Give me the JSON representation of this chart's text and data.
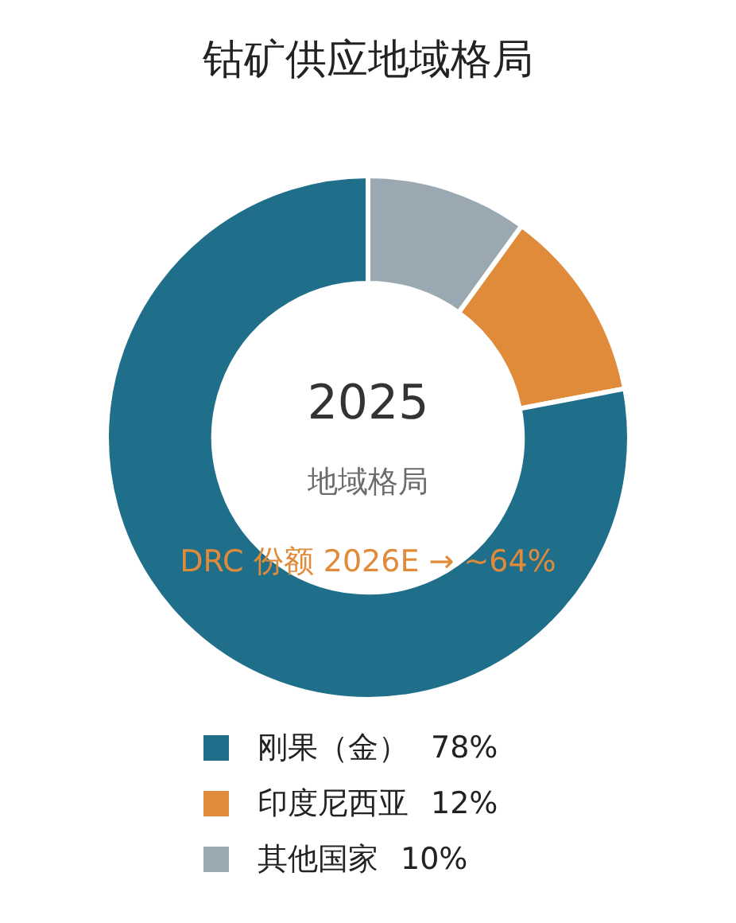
{
  "chart_data": {
    "type": "donut",
    "title": "钴矿供应地域格局",
    "categories": [
      "刚果（金）",
      "印度尼西亚",
      "其他国家"
    ],
    "values": [
      78,
      12,
      10
    ],
    "colors": [
      "#1f6f8b",
      "#e08b3a",
      "#9aa8b2"
    ],
    "value_labels": [
      "78%",
      "12%",
      "10%"
    ],
    "annotations": [
      "2025",
      "地域格局",
      "DRC 份额 2026E → ~64%"
    ],
    "legend": "bottom"
  }
}
